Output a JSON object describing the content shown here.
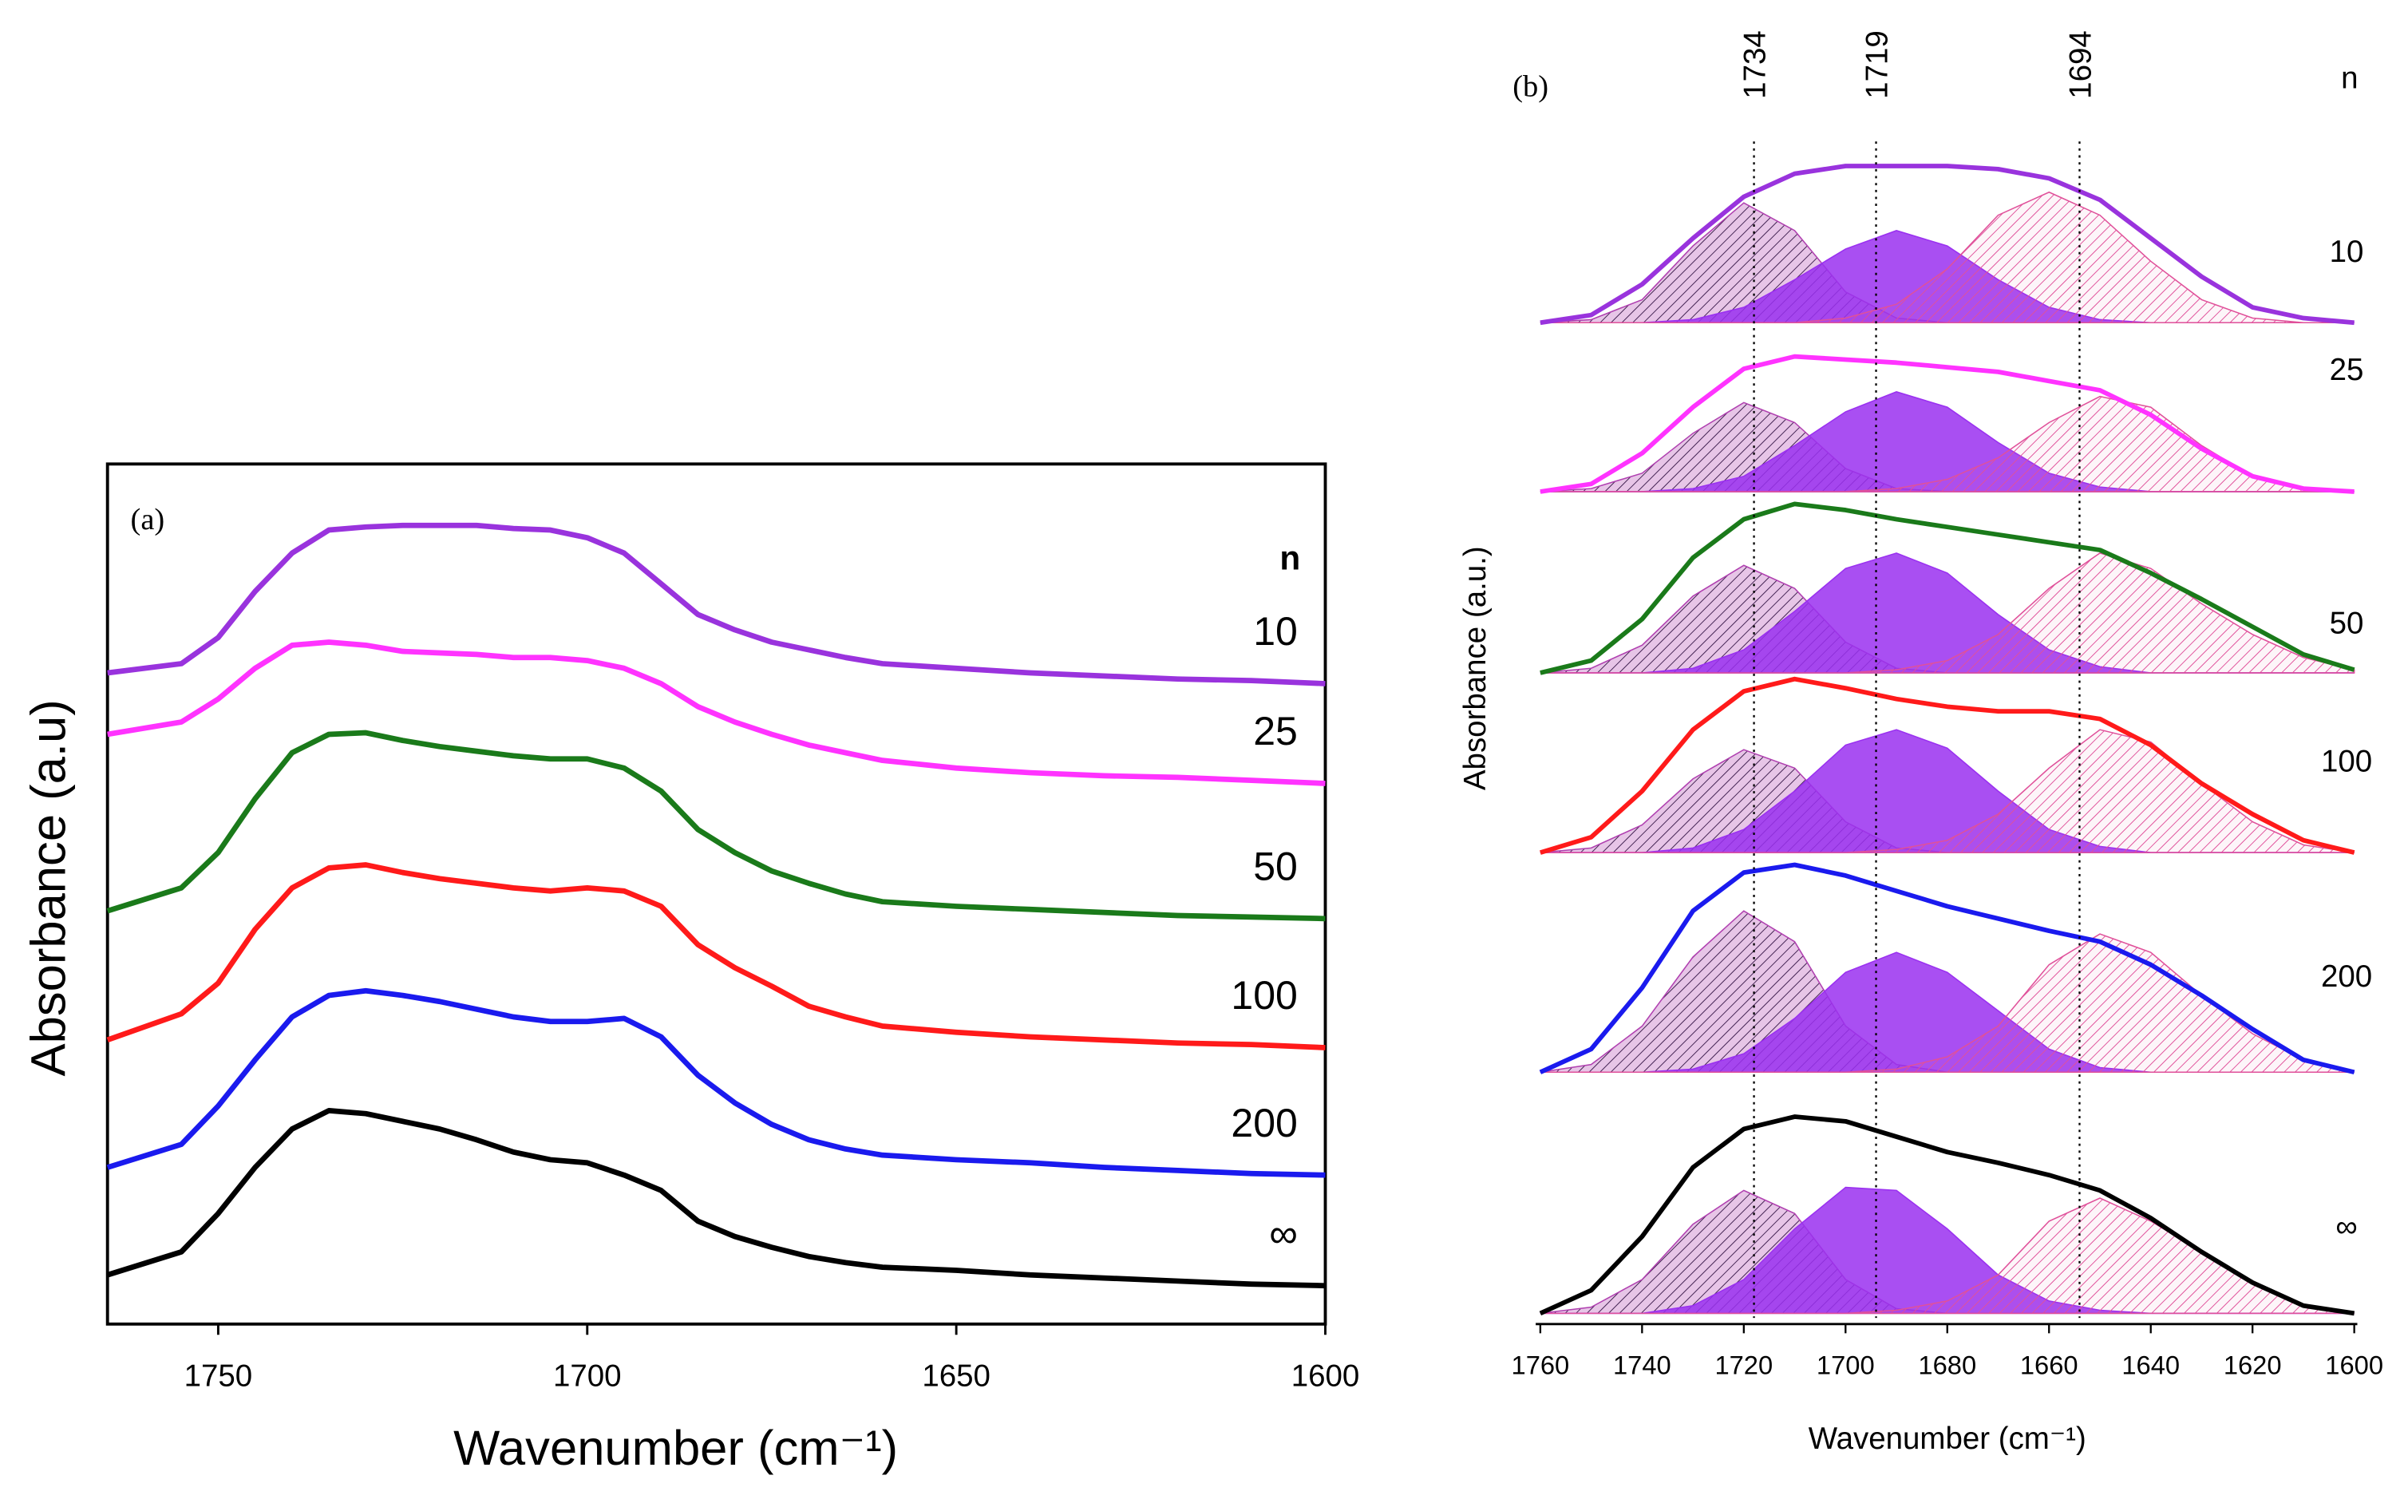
{
  "chart_data": [
    {
      "type": "line",
      "label": "(a)",
      "x_label": "Wavenumber (cm⁻¹)",
      "y_label": "Absorbance (a.u)",
      "legend_title": "n",
      "x": [
        1765,
        1755,
        1750,
        1745,
        1740,
        1735,
        1730,
        1725,
        1720,
        1715,
        1710,
        1705,
        1700,
        1695,
        1690,
        1685,
        1680,
        1675,
        1670,
        1665,
        1660,
        1650,
        1640,
        1630,
        1620,
        1610,
        1600
      ],
      "xlim": [
        1765,
        1600
      ],
      "xticks": [
        1750,
        1700,
        1650,
        1600
      ],
      "ylim": [
        0,
        560
      ],
      "series": [
        {
          "name": "10",
          "color": "#9933dd",
          "values": [
            424,
            430,
            447,
            477,
            502,
            517,
            519,
            520,
            520,
            520,
            518,
            517,
            512,
            502,
            482,
            462,
            452,
            444,
            439,
            434,
            430,
            427,
            424,
            422,
            420,
            419,
            417
          ]
        },
        {
          "name": "25",
          "color": "#ff33ff",
          "values": [
            384,
            392,
            407,
            427,
            442,
            444,
            442,
            438,
            437,
            436,
            434,
            434,
            432,
            427,
            417,
            402,
            392,
            384,
            377,
            372,
            367,
            362,
            359,
            357,
            356,
            354,
            352
          ]
        },
        {
          "name": "50",
          "color": "#1a7a1a",
          "values": [
            269,
            284,
            307,
            342,
            372,
            384,
            385,
            380,
            376,
            373,
            370,
            368,
            368,
            362,
            347,
            322,
            307,
            295,
            287,
            280,
            275,
            272,
            270,
            268,
            266,
            265,
            264
          ]
        },
        {
          "name": "100",
          "color": "#ff1a1a",
          "values": [
            185,
            202,
            222,
            257,
            284,
            297,
            299,
            294,
            290,
            287,
            284,
            282,
            284,
            282,
            272,
            247,
            232,
            220,
            207,
            200,
            194,
            190,
            187,
            185,
            183,
            182,
            180
          ]
        },
        {
          "name": "200",
          "color": "#1a1aee",
          "values": [
            102,
            117,
            142,
            172,
            200,
            214,
            217,
            214,
            210,
            205,
            200,
            197,
            197,
            199,
            187,
            162,
            144,
            130,
            120,
            114,
            110,
            107,
            105,
            102,
            100,
            98,
            97
          ]
        },
        {
          "name": "∞",
          "color": "#000000",
          "values": [
            32,
            47,
            72,
            102,
            127,
            139,
            137,
            132,
            127,
            120,
            112,
            107,
            105,
            97,
            87,
            67,
            57,
            50,
            44,
            40,
            37,
            35,
            32,
            30,
            28,
            26,
            25
          ]
        }
      ]
    },
    {
      "type": "area",
      "label": "(b)",
      "x_label": "Wavenumber (cm⁻¹)",
      "y_label": "Absorbance (a.u.)",
      "legend_title": "n",
      "x": [
        1760,
        1750,
        1740,
        1730,
        1720,
        1710,
        1700,
        1690,
        1680,
        1670,
        1660,
        1650,
        1640,
        1630,
        1620,
        1610,
        1600
      ],
      "xlim": [
        1760,
        1600
      ],
      "xticks": [
        1760,
        1740,
        1720,
        1700,
        1680,
        1660,
        1640,
        1620,
        1600
      ],
      "ylim": [
        0,
        150
      ],
      "component_colors": [
        "#b040b0",
        "#9a30f0",
        "#e0509a"
      ],
      "vlines": [
        {
          "label": "1734",
          "x": 1718
        },
        {
          "label": "1719",
          "x": 1694
        },
        {
          "label": "1694",
          "x": 1654
        }
      ],
      "series": [
        {
          "name": "10",
          "color": "#9933dd",
          "values": [
            0,
            5,
            25,
            55,
            82,
            97,
            102,
            102,
            102,
            100,
            94,
            80,
            55,
            30,
            10,
            3,
            0
          ],
          "components": [
            [
              0,
              2,
              15,
              50,
              78,
              60,
              20,
              3,
              0,
              0,
              0,
              0,
              0,
              0,
              0,
              0,
              0
            ],
            [
              0,
              0,
              0,
              2,
              10,
              28,
              48,
              60,
              50,
              28,
              10,
              2,
              0,
              0,
              0,
              0,
              0
            ],
            [
              0,
              0,
              0,
              0,
              0,
              0,
              3,
              12,
              35,
              70,
              85,
              70,
              40,
              15,
              3,
              0,
              0
            ]
          ]
        },
        {
          "name": "25",
          "color": "#ff33ff",
          "values": [
            0,
            5,
            25,
            55,
            80,
            88,
            86,
            84,
            81,
            78,
            72,
            66,
            50,
            28,
            10,
            2,
            0
          ],
          "components": [
            [
              0,
              2,
              12,
              38,
              58,
              45,
              15,
              2,
              0,
              0,
              0,
              0,
              0,
              0,
              0,
              0,
              0
            ],
            [
              0,
              0,
              0,
              2,
              10,
              30,
              52,
              65,
              55,
              32,
              12,
              3,
              0,
              0,
              0,
              0,
              0
            ],
            [
              0,
              0,
              0,
              0,
              0,
              0,
              0,
              2,
              8,
              22,
              45,
              62,
              55,
              30,
              10,
              2,
              0
            ]
          ]
        },
        {
          "name": "50",
          "color": "#1a7a1a",
          "values": [
            0,
            8,
            35,
            75,
            100,
            110,
            106,
            100,
            95,
            90,
            85,
            80,
            65,
            48,
            30,
            12,
            2
          ],
          "components": [
            [
              0,
              3,
              18,
              50,
              70,
              55,
              20,
              3,
              0,
              0,
              0,
              0,
              0,
              0,
              0,
              0,
              0
            ],
            [
              0,
              0,
              0,
              3,
              15,
              40,
              68,
              78,
              65,
              38,
              15,
              4,
              0,
              0,
              0,
              0,
              0
            ],
            [
              0,
              0,
              0,
              0,
              0,
              0,
              0,
              2,
              8,
              25,
              55,
              78,
              68,
              45,
              25,
              10,
              2
            ]
          ]
        },
        {
          "name": "100",
          "color": "#ff1a1a",
          "values": [
            0,
            10,
            40,
            80,
            105,
            113,
            107,
            100,
            95,
            92,
            92,
            87,
            70,
            45,
            25,
            8,
            0
          ],
          "components": [
            [
              0,
              3,
              18,
              48,
              67,
              55,
              20,
              3,
              0,
              0,
              0,
              0,
              0,
              0,
              0,
              0,
              0
            ],
            [
              0,
              0,
              0,
              3,
              15,
              40,
              70,
              80,
              68,
              40,
              15,
              4,
              0,
              0,
              0,
              0,
              0
            ],
            [
              0,
              0,
              0,
              0,
              0,
              0,
              0,
              2,
              8,
              25,
              55,
              80,
              72,
              45,
              20,
              5,
              0
            ]
          ]
        },
        {
          "name": "200",
          "color": "#1a1aee",
          "values": [
            0,
            15,
            55,
            105,
            130,
            135,
            128,
            118,
            108,
            100,
            92,
            85,
            70,
            50,
            28,
            8,
            0
          ],
          "components": [
            [
              0,
              5,
              30,
              75,
              105,
              85,
              30,
              5,
              0,
              0,
              0,
              0,
              0,
              0,
              0,
              0,
              0
            ],
            [
              0,
              0,
              0,
              2,
              12,
              35,
              65,
              78,
              65,
              40,
              15,
              3,
              0,
              0,
              0,
              0,
              0
            ],
            [
              0,
              0,
              0,
              0,
              0,
              0,
              0,
              2,
              10,
              30,
              70,
              90,
              78,
              50,
              25,
              8,
              0
            ]
          ]
        },
        {
          "name": "∞",
          "color": "#000000",
          "values": [
            0,
            15,
            50,
            95,
            120,
            128,
            125,
            115,
            105,
            98,
            90,
            80,
            62,
            40,
            20,
            5,
            0
          ],
          "components": [
            [
              0,
              4,
              22,
              58,
              80,
              65,
              22,
              3,
              0,
              0,
              0,
              0,
              0,
              0,
              0,
              0,
              0
            ],
            [
              0,
              0,
              0,
              5,
              22,
              55,
              82,
              80,
              55,
              25,
              8,
              2,
              0,
              0,
              0,
              0,
              0
            ],
            [
              0,
              0,
              0,
              0,
              0,
              0,
              0,
              2,
              8,
              25,
              60,
              75,
              60,
              40,
              20,
              5,
              0
            ]
          ]
        }
      ]
    }
  ]
}
